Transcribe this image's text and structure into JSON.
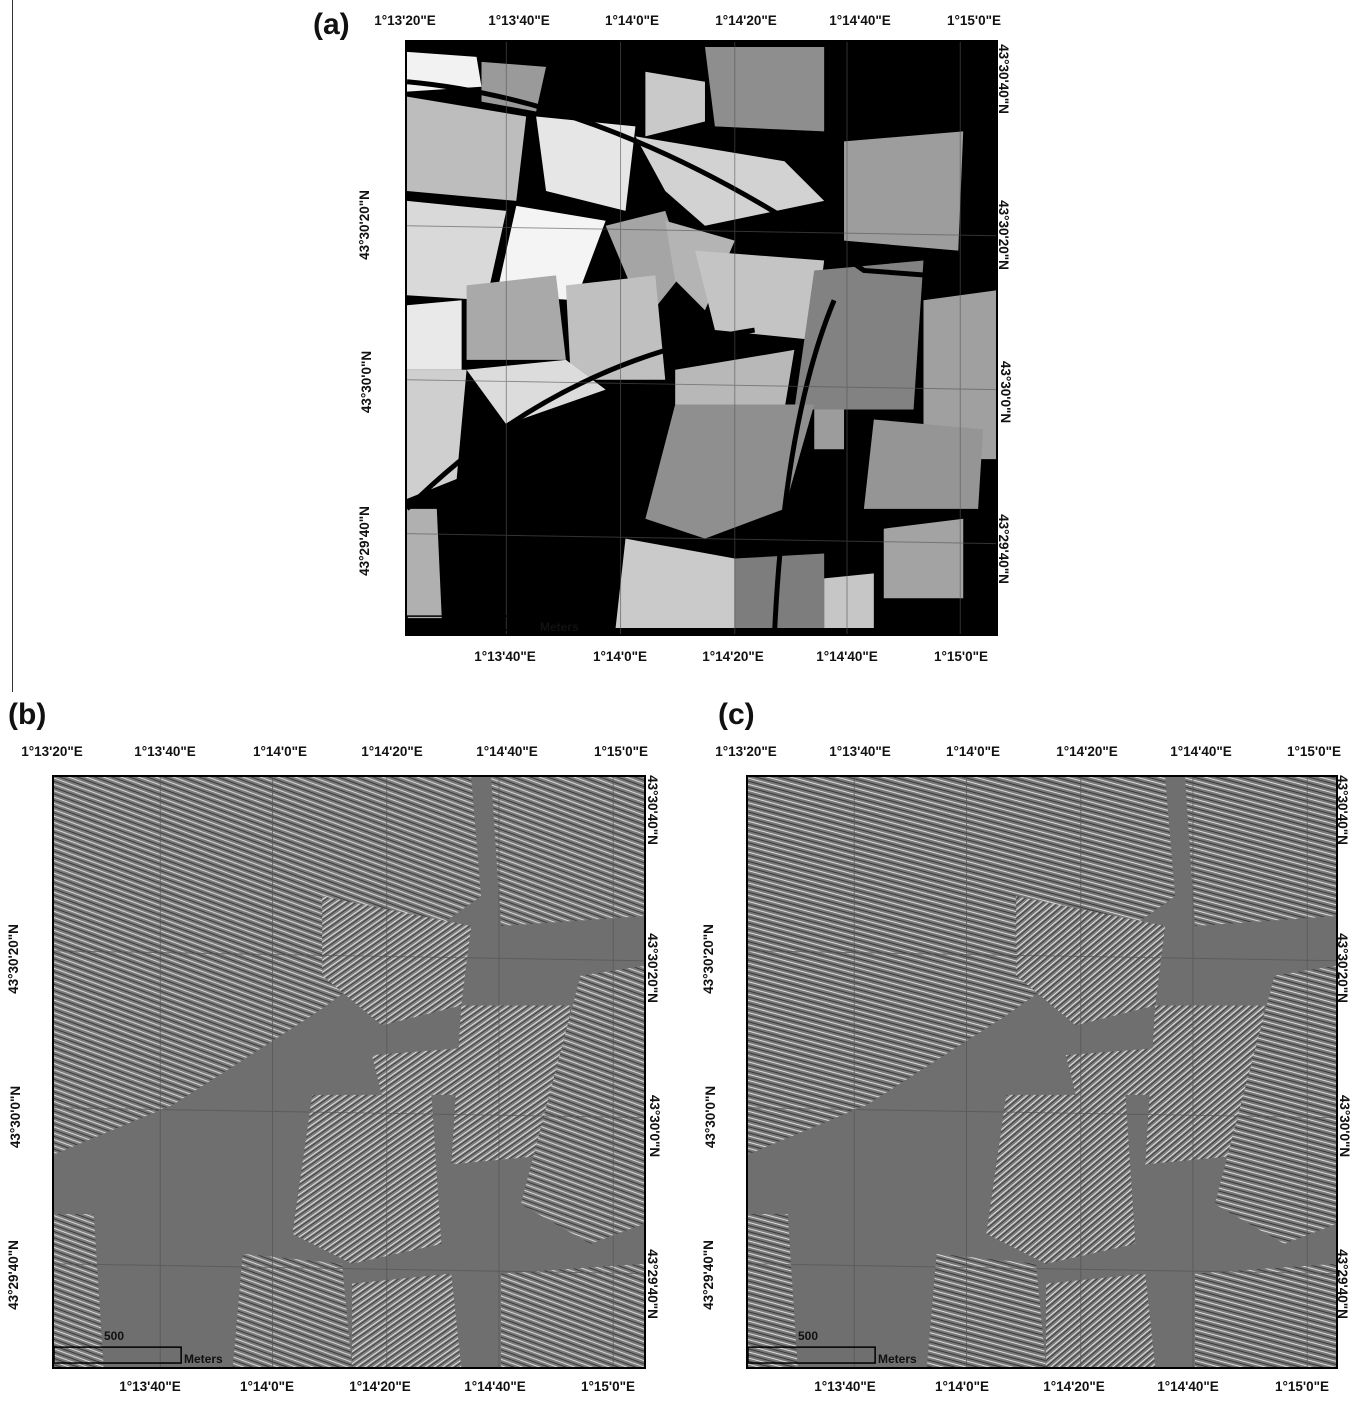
{
  "panels": {
    "a": {
      "label": "(a)",
      "top_ticks": [
        "1°13'20\"E",
        "1°13'40\"E",
        "1°14'0\"E",
        "1°14'20\"E",
        "1°14'40\"E",
        "1°15'0\"E"
      ],
      "bottom_ticks": [
        "1°13'40\"E",
        "1°14'0\"E",
        "1°14'20\"E",
        "1°14'40\"E",
        "1°15'0\"E"
      ],
      "left_ticks": [
        "43°30'20\"N",
        "43°30'0\"N",
        "43°29'40\"N"
      ],
      "right_ticks": [
        "43°30'40\"N",
        "43°30'20\"N",
        "43°30'0\"N",
        "43°29'40\"N"
      ],
      "scale_unit": "Meters",
      "scale_value": ""
    },
    "b": {
      "label": "(b)",
      "top_ticks": [
        "1°13'20\"E",
        "1°13'40\"E",
        "1°14'0\"E",
        "1°14'20\"E",
        "1°14'40\"E",
        "1°15'0\"E"
      ],
      "bottom_ticks": [
        "1°13'40\"E",
        "1°14'0\"E",
        "1°14'20\"E",
        "1°14'40\"E",
        "1°15'0\"E"
      ],
      "left_ticks": [
        "43°30'20\"N",
        "43°30'0\"N",
        "43°29'40\"N"
      ],
      "right_ticks": [
        "43°30'40\"N",
        "43°30'20\"N",
        "43°30'0\"N",
        "43°29'40\"N"
      ],
      "scale_unit": "Meters",
      "scale_value": "500"
    },
    "c": {
      "label": "(c)",
      "top_ticks": [
        "1°13'20\"E",
        "1°13'40\"E",
        "1°14'0\"E",
        "1°14'20\"E",
        "1°14'40\"E",
        "1°15'0\"E"
      ],
      "bottom_ticks": [
        "1°13'40\"E",
        "1°14'0\"E",
        "1°14'20\"E",
        "1°14'40\"E",
        "1°15'0\"E"
      ],
      "left_ticks": [
        "43°30'20\"N",
        "43°30'0\"N",
        "43°29'40\"N"
      ],
      "right_ticks": [
        "43°30'40\"N",
        "43°30'20\"N",
        "43°30'0\"N",
        "43°29'40\"N"
      ],
      "scale_unit": "Meters",
      "scale_value": "500"
    }
  },
  "colors": {
    "intensity_background": "#000000",
    "texture_background": "#6f6f6f",
    "frame": "#000000"
  }
}
